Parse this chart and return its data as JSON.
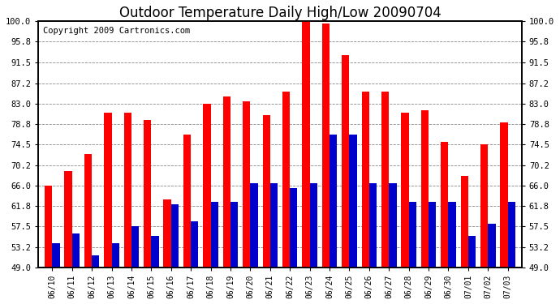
{
  "title": "Outdoor Temperature Daily High/Low 20090704",
  "copyright": "Copyright 2009 Cartronics.com",
  "dates": [
    "06/10",
    "06/11",
    "06/12",
    "06/13",
    "06/14",
    "06/15",
    "06/16",
    "06/17",
    "06/18",
    "06/19",
    "06/20",
    "06/21",
    "06/22",
    "06/23",
    "06/24",
    "06/25",
    "06/26",
    "06/27",
    "06/28",
    "06/29",
    "06/30",
    "07/01",
    "07/02",
    "07/03"
  ],
  "highs": [
    66.0,
    69.0,
    72.5,
    81.0,
    81.0,
    79.5,
    63.0,
    76.5,
    83.0,
    84.5,
    83.5,
    80.5,
    85.5,
    100.0,
    99.5,
    93.0,
    85.5,
    85.5,
    81.0,
    81.5,
    75.0,
    68.0,
    74.5,
    79.0
  ],
  "lows": [
    54.0,
    56.0,
    51.5,
    54.0,
    57.5,
    55.5,
    62.0,
    58.5,
    62.5,
    62.5,
    66.5,
    66.5,
    65.5,
    66.5,
    76.5,
    76.5,
    66.5,
    66.5,
    62.5,
    62.5,
    62.5,
    55.5,
    58.0,
    62.5
  ],
  "ylim": [
    49.0,
    100.0
  ],
  "yticks": [
    49.0,
    53.2,
    57.5,
    61.8,
    66.0,
    70.2,
    74.5,
    78.8,
    83.0,
    87.2,
    91.5,
    95.8,
    100.0
  ],
  "high_color": "#ff0000",
  "low_color": "#0000cc",
  "bg_color": "#ffffff",
  "grid_color": "#888888",
  "title_fontsize": 12,
  "copyright_fontsize": 7.5,
  "bar_width": 0.38
}
